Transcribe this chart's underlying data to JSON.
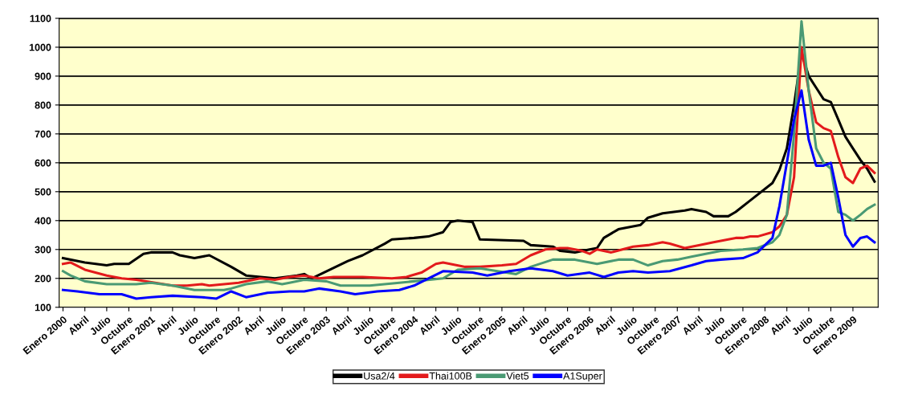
{
  "chart_data": {
    "type": "line",
    "ylim": [
      100,
      1100
    ],
    "yticks": [
      100,
      200,
      300,
      400,
      500,
      600,
      700,
      800,
      900,
      1000,
      1100
    ],
    "xlim": [
      "1999-12-16",
      "2009-04-16"
    ],
    "xticks": [
      {
        "value": "2000-01-01",
        "label": "Enero 2000"
      },
      {
        "value": "2000-04-01",
        "label": "Abril"
      },
      {
        "value": "2000-07-01",
        "label": "Julio"
      },
      {
        "value": "2000-10-01",
        "label": "Octubre"
      },
      {
        "value": "2001-01-01",
        "label": "Enero 2001"
      },
      {
        "value": "2001-04-01",
        "label": "Abril"
      },
      {
        "value": "2001-07-01",
        "label": "Julio"
      },
      {
        "value": "2001-10-01",
        "label": "Octubre"
      },
      {
        "value": "2002-01-01",
        "label": "Enero 2002"
      },
      {
        "value": "2002-04-01",
        "label": "Abril"
      },
      {
        "value": "2002-07-01",
        "label": "Julio"
      },
      {
        "value": "2002-10-01",
        "label": "Octubre"
      },
      {
        "value": "2003-01-01",
        "label": "Enero 2003"
      },
      {
        "value": "2003-04-01",
        "label": "Abril"
      },
      {
        "value": "2003-07-01",
        "label": "Julio"
      },
      {
        "value": "2003-10-01",
        "label": "Octubre"
      },
      {
        "value": "2004-01-01",
        "label": "Enero 2004"
      },
      {
        "value": "2004-04-01",
        "label": "Abril"
      },
      {
        "value": "2004-07-01",
        "label": "Julio"
      },
      {
        "value": "2004-10-01",
        "label": "Octubre"
      },
      {
        "value": "2005-01-01",
        "label": "Enero 2005"
      },
      {
        "value": "2005-04-01",
        "label": "Abril"
      },
      {
        "value": "2005-07-01",
        "label": "Julio"
      },
      {
        "value": "2005-10-01",
        "label": "Octubre"
      },
      {
        "value": "2006-01-01",
        "label": "Enero 2006"
      },
      {
        "value": "2006-04-01",
        "label": "Abril"
      },
      {
        "value": "2006-07-01",
        "label": "Julio"
      },
      {
        "value": "2006-10-01",
        "label": "Octubre"
      },
      {
        "value": "2007-01-01",
        "label": "Enero 2007"
      },
      {
        "value": "2007-04-01",
        "label": "Abril"
      },
      {
        "value": "2007-07-01",
        "label": "Julio"
      },
      {
        "value": "2007-10-01",
        "label": "Octubre"
      },
      {
        "value": "2008-01-01",
        "label": "Enero 2008"
      },
      {
        "value": "2008-04-01",
        "label": "Abril"
      },
      {
        "value": "2008-07-01",
        "label": "Julio"
      },
      {
        "value": "2008-10-01",
        "label": "Octubre"
      },
      {
        "value": "2009-01-01",
        "label": "Enero 2009"
      }
    ],
    "grid": "y",
    "legend": "bottom",
    "marker": "none",
    "line_style": "solid",
    "series": [
      {
        "name": "Usa2/4",
        "color": "#000000",
        "x": [
          "2000-01",
          "2000-04",
          "2000-07",
          "2000-08",
          "2000-10",
          "2000-12",
          "2001-01",
          "2001-04",
          "2001-05",
          "2001-07",
          "2001-09",
          "2001-12",
          "2002-02",
          "2002-06",
          "2002-09",
          "2002-10",
          "2002-11",
          "2003-04",
          "2003-06",
          "2003-09",
          "2003-10",
          "2004-01",
          "2004-03",
          "2004-05",
          "2004-06",
          "2004-07",
          "2004-09",
          "2004-10",
          "2005-04",
          "2005-05",
          "2005-08",
          "2005-09",
          "2005-11",
          "2006-01",
          "2006-02",
          "2006-03",
          "2006-05",
          "2006-07",
          "2006-08",
          "2006-09",
          "2006-11",
          "2007-02",
          "2007-03",
          "2007-05",
          "2007-06",
          "2007-08",
          "2007-09",
          "2007-11",
          "2008-02",
          "2008-03",
          "2008-04",
          "2008-05",
          "2008-06",
          "2008-07",
          "2008-08",
          "2008-09",
          "2008-10",
          "2008-11",
          "2008-12",
          "2009-01",
          "2009-02",
          "2009-03",
          "2009-04"
        ],
        "values": [
          270,
          255,
          245,
          250,
          250,
          285,
          290,
          290,
          280,
          270,
          280,
          240,
          210,
          200,
          210,
          215,
          200,
          260,
          280,
          320,
          335,
          340,
          345,
          360,
          395,
          400,
          395,
          335,
          330,
          315,
          310,
          295,
          290,
          300,
          305,
          340,
          370,
          380,
          385,
          410,
          425,
          435,
          440,
          430,
          415,
          415,
          430,
          470,
          530,
          575,
          650,
          800,
          980,
          900,
          860,
          820,
          810,
          750,
          690,
          650,
          610,
          580,
          535
        ]
      },
      {
        "name": "Thai100B",
        "color": "#e31a1c",
        "x": [
          "2000-01",
          "2000-02",
          "2000-04",
          "2000-07",
          "2000-09",
          "2000-11",
          "2001-04",
          "2001-06",
          "2001-08",
          "2001-09",
          "2002-01",
          "2002-04",
          "2002-06",
          "2002-08",
          "2002-10",
          "2002-12",
          "2003-02",
          "2003-06",
          "2003-10",
          "2003-12",
          "2004-02",
          "2004-04",
          "2004-05",
          "2004-08",
          "2004-10",
          "2005-01",
          "2005-03",
          "2005-05",
          "2005-07",
          "2005-09",
          "2005-10",
          "2005-11",
          "2005-12",
          "2006-01",
          "2006-02",
          "2006-04",
          "2006-07",
          "2006-09",
          "2006-11",
          "2006-12",
          "2007-02",
          "2007-04",
          "2007-06",
          "2007-08",
          "2007-09",
          "2007-10",
          "2007-11",
          "2007-12",
          "2008-02",
          "2008-03",
          "2008-04",
          "2008-05",
          "2008-06",
          "2008-07",
          "2008-08",
          "2008-09",
          "2008-10",
          "2008-11",
          "2008-12",
          "2009-01",
          "2009-02",
          "2009-03",
          "2009-04"
        ],
        "values": [
          250,
          255,
          230,
          210,
          200,
          195,
          175,
          175,
          180,
          175,
          185,
          200,
          195,
          205,
          210,
          200,
          205,
          205,
          200,
          205,
          220,
          250,
          255,
          240,
          240,
          245,
          250,
          280,
          300,
          305,
          305,
          300,
          295,
          285,
          300,
          290,
          310,
          315,
          325,
          320,
          305,
          315,
          325,
          335,
          340,
          340,
          345,
          345,
          360,
          380,
          420,
          550,
          1000,
          850,
          740,
          720,
          710,
          620,
          550,
          530,
          580,
          590,
          565
        ]
      },
      {
        "name": "Viet5",
        "color": "#4a9a74",
        "x": [
          "2000-01",
          "2000-02",
          "2000-04",
          "2000-07",
          "2000-11",
          "2001-01",
          "2001-04",
          "2001-07",
          "2001-11",
          "2001-12",
          "2002-02",
          "2002-05",
          "2002-07",
          "2002-08",
          "2002-10",
          "2003-01",
          "2003-03",
          "2003-05",
          "2003-07",
          "2003-11",
          "2004-01",
          "2004-05",
          "2004-07",
          "2004-10",
          "2005-03",
          "2005-05",
          "2005-08",
          "2005-11",
          "2006-02",
          "2006-05",
          "2006-07",
          "2006-09",
          "2006-11",
          "2007-01",
          "2007-03",
          "2007-07",
          "2007-10",
          "2007-12",
          "2008-02",
          "2008-03",
          "2008-04",
          "2008-05",
          "2008-06",
          "2008-07",
          "2008-08",
          "2008-09",
          "2008-10",
          "2008-11",
          "2008-12",
          "2009-01",
          "2009-02",
          "2009-03",
          "2009-04"
        ],
        "values": [
          225,
          210,
          190,
          180,
          180,
          185,
          175,
          160,
          160,
          165,
          180,
          190,
          180,
          185,
          195,
          190,
          175,
          175,
          175,
          185,
          190,
          200,
          230,
          235,
          215,
          240,
          265,
          265,
          250,
          265,
          265,
          245,
          260,
          265,
          275,
          295,
          300,
          305,
          325,
          350,
          420,
          700,
          1090,
          850,
          650,
          600,
          580,
          430,
          420,
          400,
          420,
          440,
          455
        ]
      },
      {
        "name": "A1Super",
        "color": "#0000ff",
        "x": [
          "2000-01",
          "2000-03",
          "2000-06",
          "2000-09",
          "2000-11",
          "2001-01",
          "2001-04",
          "2001-08",
          "2001-10",
          "2001-12",
          "2002-02",
          "2002-05",
          "2002-08",
          "2002-10",
          "2002-12",
          "2003-03",
          "2003-05",
          "2003-08",
          "2003-11",
          "2004-01",
          "2004-03",
          "2004-05",
          "2004-09",
          "2004-11",
          "2005-02",
          "2005-05",
          "2005-08",
          "2005-10",
          "2006-01",
          "2006-03",
          "2006-05",
          "2006-07",
          "2006-09",
          "2006-12",
          "2007-03",
          "2007-05",
          "2007-07",
          "2007-10",
          "2007-12",
          "2008-02",
          "2008-03",
          "2008-04",
          "2008-05",
          "2008-06",
          "2008-07",
          "2008-08",
          "2008-09",
          "2008-10",
          "2008-11",
          "2008-12",
          "2009-01",
          "2009-02",
          "2009-03",
          "2009-04"
        ],
        "values": [
          160,
          155,
          145,
          145,
          130,
          135,
          140,
          135,
          130,
          155,
          135,
          150,
          155,
          155,
          165,
          155,
          145,
          155,
          160,
          175,
          200,
          225,
          220,
          210,
          225,
          235,
          225,
          210,
          220,
          205,
          220,
          225,
          220,
          225,
          245,
          260,
          265,
          270,
          290,
          340,
          450,
          600,
          750,
          850,
          680,
          590,
          590,
          600,
          480,
          350,
          310,
          340,
          345,
          325
        ]
      }
    ]
  }
}
